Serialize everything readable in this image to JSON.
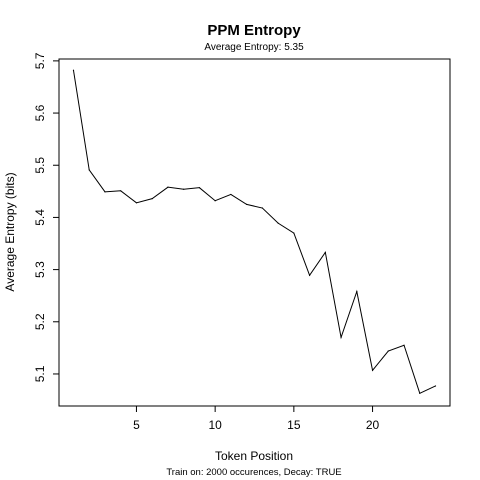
{
  "chart_data": {
    "type": "line",
    "title": "PPM Entropy",
    "subtitle": "Average Entropy: 5.35",
    "xlabel": "Token Position",
    "ylabel": "Average Entropy (bits)",
    "footnote": "Train on: 2000 occurences, Decay: TRUE",
    "xlim": [
      0.08,
      24.92
    ],
    "ylim": [
      5.0386,
      5.7036
    ],
    "x_ticks": [
      5,
      10,
      15,
      20
    ],
    "y_ticks": [
      5.1,
      5.2,
      5.3,
      5.4,
      5.5,
      5.6,
      5.7
    ],
    "grid": false,
    "legend": "none",
    "line_color": "#000000",
    "x": [
      1,
      2,
      3,
      4,
      5,
      6,
      7,
      8,
      9,
      10,
      11,
      12,
      13,
      14,
      15,
      16,
      17,
      18,
      19,
      20,
      21,
      22,
      23,
      24
    ],
    "y": [
      5.682,
      5.491,
      5.449,
      5.451,
      5.428,
      5.436,
      5.458,
      5.454,
      5.457,
      5.432,
      5.444,
      5.425,
      5.418,
      5.389,
      5.37,
      5.289,
      5.333,
      5.17,
      5.258,
      5.107,
      5.144,
      5.155,
      5.063,
      5.077
    ]
  }
}
